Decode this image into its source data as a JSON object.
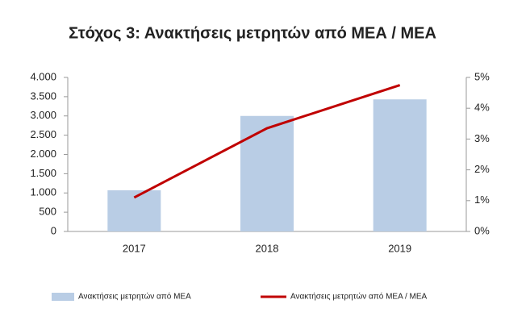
{
  "chart_data": {
    "type": "bar",
    "title": "Στόχος 3: Ανακτήσεις μετρητών από ΜΕΑ / ΜΕΑ",
    "categories": [
      "2017",
      "2018",
      "2019"
    ],
    "series": [
      {
        "name": "Ανακτήσεις μετρητών από ΜΕΑ",
        "type": "bar",
        "color": "#b9cde5",
        "values": [
          1070,
          3000,
          3430
        ]
      },
      {
        "name": "Ανακτήσεις μετρητών από ΜΕΑ / ΜΕΑ",
        "type": "line",
        "axis": "y2",
        "color": "#c00000",
        "values": [
          1.1,
          3.35,
          4.75
        ]
      }
    ],
    "ylim": [
      0,
      4000
    ],
    "yticks": [
      0,
      {
        "value": 500,
        "label": "500"
      },
      {
        "value": 1000,
        "label": "1.000"
      },
      {
        "value": 1500,
        "label": "1.500"
      },
      {
        "value": 2000,
        "label": "2.000"
      },
      {
        "value": 2500,
        "label": "2.500"
      },
      {
        "value": 3000,
        "label": "3.000"
      },
      {
        "value": 3500,
        "label": "3.500"
      },
      {
        "value": 4000,
        "label": "4.000"
      }
    ],
    "y2lim": [
      0,
      5
    ],
    "y2ticks": [
      {
        "value": 0,
        "label": "0%"
      },
      {
        "value": 1,
        "label": "1%"
      },
      {
        "value": 2,
        "label": "2%"
      },
      {
        "value": 3,
        "label": "3%"
      },
      {
        "value": 4,
        "label": "4%"
      },
      {
        "value": 5,
        "label": "5%"
      }
    ],
    "grid": false,
    "legend": "bottom"
  }
}
